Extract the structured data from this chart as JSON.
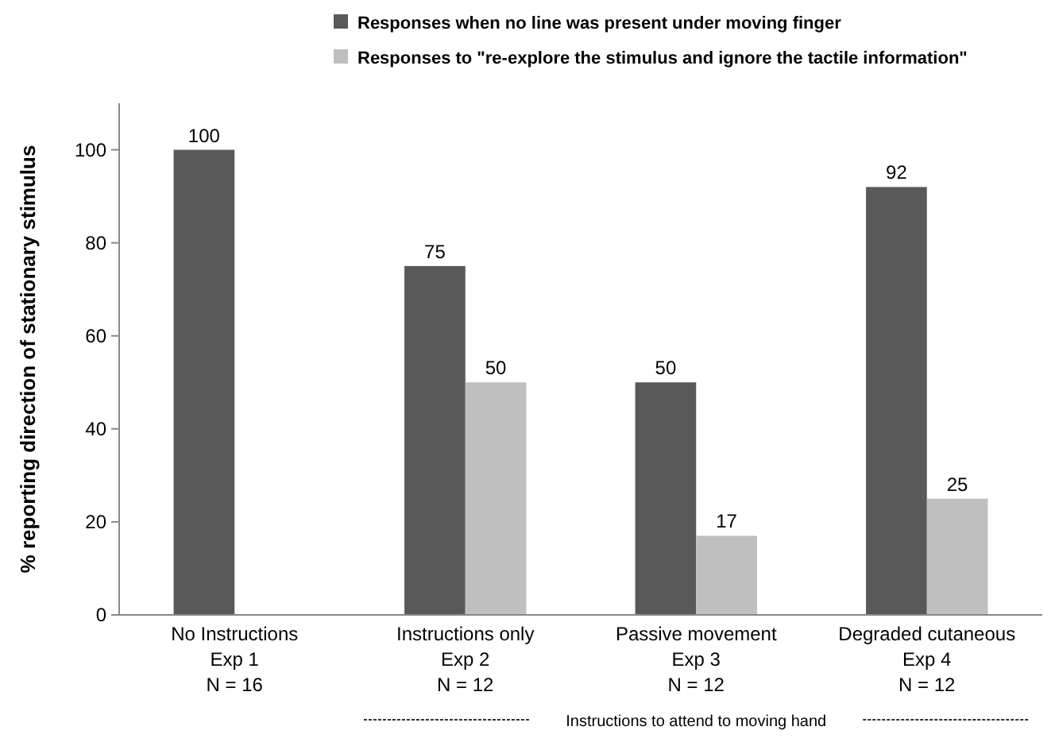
{
  "chart_data": {
    "type": "bar",
    "ylabel": "% reporting direction of stationary stimulus",
    "categories": [
      "No Instructions\nExp 1\nN = 16",
      "Instructions only\nExp 2\nN = 12",
      "Passive movement\nExp 3\nN = 12",
      "Degraded cutaneous\nExp 4\nN = 12"
    ],
    "series": [
      {
        "name": "Responses when no line was present under moving finger",
        "color": "#595959",
        "values": [
          100,
          75,
          50,
          92
        ]
      },
      {
        "name": "Responses to \"re-explore the stimulus and ignore the tactile information\"",
        "color": "#bfbfbf",
        "values": [
          null,
          50,
          17,
          25
        ]
      }
    ],
    "ylim": [
      0,
      110
    ],
    "yticks": [
      0,
      20,
      40,
      60,
      80,
      100
    ],
    "data_labels": true,
    "legend": "top",
    "grid": false,
    "annotations": [
      "Instructions  to attend to moving hand"
    ]
  }
}
